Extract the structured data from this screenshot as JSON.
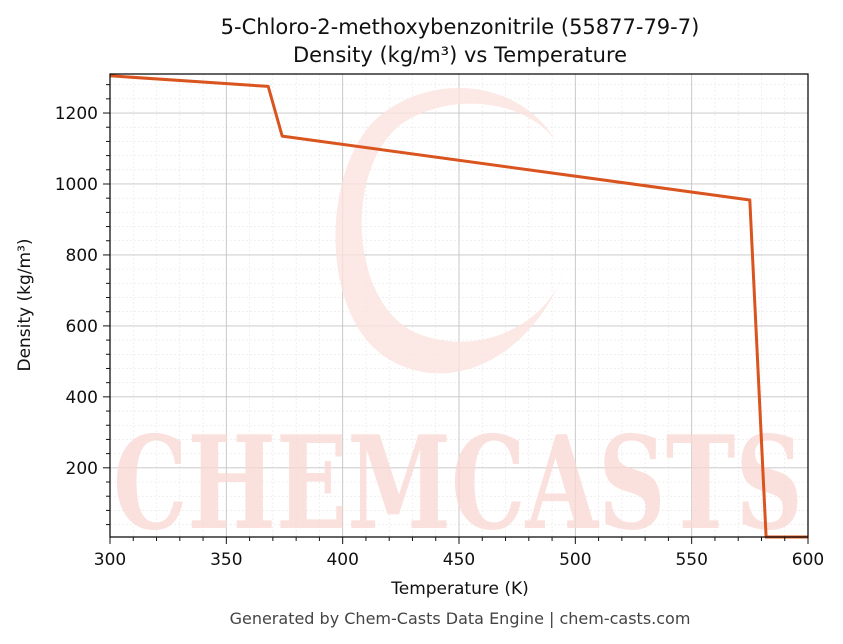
{
  "chart_data": {
    "type": "line",
    "title_line1": "5-Chloro-2-methoxybenzonitrile (55877-79-7)",
    "title_line2": "Density (kg/m³) vs Temperature",
    "xlabel": "Temperature (K)",
    "ylabel": "Density (kg/m³)",
    "xlim": [
      300,
      600
    ],
    "ylim": [
      5,
      1310
    ],
    "xticks": [
      300,
      350,
      400,
      450,
      500,
      550,
      600
    ],
    "yticks": [
      200,
      400,
      600,
      800,
      1000,
      1200
    ],
    "grid": true,
    "line_color": "#d9541e",
    "series": [
      {
        "x": [
          300,
          368,
          374,
          575,
          582,
          600
        ],
        "y": [
          1305,
          1275,
          1135,
          955,
          5,
          5
        ]
      }
    ]
  },
  "footer": "Generated by Chem-Casts Data Engine | chem-casts.com",
  "watermark": {
    "text": "CHEMCASTS",
    "color": "#f9d8d2"
  }
}
